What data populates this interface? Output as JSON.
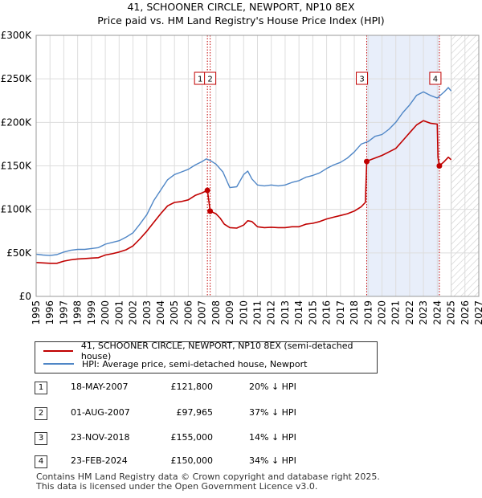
{
  "title": {
    "line1": "41, SCHOONER CIRCLE, NEWPORT, NP10 8EX",
    "line2": "Price paid vs. HM Land Registry's House Price Index (HPI)"
  },
  "colors": {
    "price": "#c00000",
    "hpi": "#4f86c6",
    "shade": "#e8eefa"
  },
  "chart_data": {
    "type": "line",
    "xlim": [
      1995,
      2027
    ],
    "ylim": [
      0,
      300000
    ],
    "y_ticks": [
      0,
      50000,
      100000,
      150000,
      200000,
      250000,
      300000
    ],
    "y_tick_labels": [
      "£0",
      "£50K",
      "£100K",
      "£150K",
      "£200K",
      "£250K",
      "£300K"
    ],
    "x_ticks": [
      1995,
      1996,
      1997,
      1998,
      1999,
      2000,
      2001,
      2002,
      2003,
      2004,
      2005,
      2006,
      2007,
      2008,
      2009,
      2010,
      2011,
      2012,
      2013,
      2014,
      2015,
      2016,
      2017,
      2018,
      2019,
      2020,
      2021,
      2022,
      2023,
      2024,
      2025,
      2026,
      2027
    ],
    "hatch_from": 2025.0,
    "shaded_ranges": [
      [
        2018.9,
        2024.15
      ]
    ],
    "series": [
      {
        "name": "41, SCHOONER CIRCLE, NEWPORT, NP10 8EX (semi-detached house)",
        "key": "price",
        "points": [
          [
            1995.0,
            39000
          ],
          [
            1995.5,
            38500
          ],
          [
            1996.0,
            38000
          ],
          [
            1996.5,
            38000
          ],
          [
            1997.0,
            40500
          ],
          [
            1997.5,
            42000
          ],
          [
            1998.0,
            43000
          ],
          [
            1998.5,
            43500
          ],
          [
            1999.0,
            44000
          ],
          [
            1999.5,
            44500
          ],
          [
            2000.0,
            47500
          ],
          [
            2000.5,
            49000
          ],
          [
            2001.0,
            51000
          ],
          [
            2001.5,
            53500
          ],
          [
            2002.0,
            58000
          ],
          [
            2002.5,
            66000
          ],
          [
            2003.0,
            75000
          ],
          [
            2003.5,
            85000
          ],
          [
            2004.0,
            95000
          ],
          [
            2004.5,
            104000
          ],
          [
            2005.0,
            108000
          ],
          [
            2005.5,
            109000
          ],
          [
            2006.0,
            111000
          ],
          [
            2006.5,
            116000
          ],
          [
            2007.0,
            119000
          ],
          [
            2007.38,
            121800
          ],
          [
            2007.5,
            108000
          ],
          [
            2007.58,
            97965
          ],
          [
            2008.0,
            95000
          ],
          [
            2008.3,
            90000
          ],
          [
            2008.6,
            83000
          ],
          [
            2009.0,
            79000
          ],
          [
            2009.5,
            78500
          ],
          [
            2010.0,
            82000
          ],
          [
            2010.3,
            87000
          ],
          [
            2010.6,
            86000
          ],
          [
            2011.0,
            80000
          ],
          [
            2011.5,
            79000
          ],
          [
            2012.0,
            79500
          ],
          [
            2012.5,
            79000
          ],
          [
            2013.0,
            79000
          ],
          [
            2013.5,
            80000
          ],
          [
            2014.0,
            80000
          ],
          [
            2014.5,
            83000
          ],
          [
            2015.0,
            84000
          ],
          [
            2015.5,
            86000
          ],
          [
            2016.0,
            89000
          ],
          [
            2016.5,
            91000
          ],
          [
            2017.0,
            93000
          ],
          [
            2017.5,
            95000
          ],
          [
            2018.0,
            98000
          ],
          [
            2018.5,
            103000
          ],
          [
            2018.8,
            108000
          ],
          [
            2018.9,
            155000
          ],
          [
            2019.0,
            156000
          ],
          [
            2019.5,
            159000
          ],
          [
            2020.0,
            162000
          ],
          [
            2020.5,
            166000
          ],
          [
            2021.0,
            170000
          ],
          [
            2021.5,
            179000
          ],
          [
            2022.0,
            188000
          ],
          [
            2022.5,
            197000
          ],
          [
            2023.0,
            202000
          ],
          [
            2023.5,
            199000
          ],
          [
            2024.0,
            198000
          ],
          [
            2024.05,
            160000
          ],
          [
            2024.15,
            150000
          ],
          [
            2024.5,
            155000
          ],
          [
            2024.8,
            160000
          ],
          [
            2025.0,
            157000
          ]
        ]
      },
      {
        "name": "HPI: Average price, semi-detached house, Newport",
        "key": "hpi",
        "points": [
          [
            1995.0,
            48500
          ],
          [
            1995.5,
            47500
          ],
          [
            1996.0,
            47000
          ],
          [
            1996.5,
            48000
          ],
          [
            1997.0,
            51000
          ],
          [
            1997.5,
            53000
          ],
          [
            1998.0,
            54000
          ],
          [
            1998.5,
            54000
          ],
          [
            1999.0,
            55000
          ],
          [
            1999.5,
            56000
          ],
          [
            2000.0,
            60000
          ],
          [
            2000.5,
            62000
          ],
          [
            2001.0,
            64000
          ],
          [
            2001.5,
            68000
          ],
          [
            2002.0,
            73000
          ],
          [
            2002.5,
            83000
          ],
          [
            2003.0,
            94000
          ],
          [
            2003.5,
            110000
          ],
          [
            2004.0,
            122000
          ],
          [
            2004.5,
            134000
          ],
          [
            2005.0,
            140000
          ],
          [
            2005.5,
            143000
          ],
          [
            2006.0,
            146000
          ],
          [
            2006.5,
            151000
          ],
          [
            2007.0,
            155000
          ],
          [
            2007.3,
            158000
          ],
          [
            2007.6,
            156000
          ],
          [
            2008.0,
            152000
          ],
          [
            2008.5,
            143000
          ],
          [
            2009.0,
            125000
          ],
          [
            2009.5,
            126000
          ],
          [
            2010.0,
            140000
          ],
          [
            2010.3,
            144000
          ],
          [
            2010.6,
            135000
          ],
          [
            2011.0,
            128000
          ],
          [
            2011.5,
            127000
          ],
          [
            2012.0,
            128000
          ],
          [
            2012.5,
            127000
          ],
          [
            2013.0,
            128000
          ],
          [
            2013.5,
            131000
          ],
          [
            2014.0,
            133000
          ],
          [
            2014.5,
            137000
          ],
          [
            2015.0,
            139000
          ],
          [
            2015.5,
            142000
          ],
          [
            2016.0,
            147000
          ],
          [
            2016.5,
            151000
          ],
          [
            2017.0,
            154000
          ],
          [
            2017.5,
            159000
          ],
          [
            2018.0,
            166000
          ],
          [
            2018.5,
            175000
          ],
          [
            2019.0,
            178000
          ],
          [
            2019.5,
            184000
          ],
          [
            2020.0,
            186000
          ],
          [
            2020.5,
            192000
          ],
          [
            2021.0,
            200000
          ],
          [
            2021.5,
            211000
          ],
          [
            2022.0,
            220000
          ],
          [
            2022.5,
            231000
          ],
          [
            2023.0,
            235000
          ],
          [
            2023.5,
            231000
          ],
          [
            2024.0,
            228000
          ],
          [
            2024.5,
            235000
          ],
          [
            2024.8,
            240000
          ],
          [
            2025.0,
            236000
          ]
        ]
      }
    ],
    "sales": [
      {
        "label": "1",
        "x": 2007.38,
        "y": 121800
      },
      {
        "label": "2",
        "x": 2007.58,
        "y": 97965
      },
      {
        "label": "3",
        "x": 2018.9,
        "y": 155000
      },
      {
        "label": "4",
        "x": 2024.15,
        "y": 150000
      }
    ]
  },
  "legend": {
    "price_label": "41, SCHOONER CIRCLE, NEWPORT, NP10 8EX (semi-detached house)",
    "hpi_label": "HPI: Average price, semi-detached house, Newport"
  },
  "transactions": [
    {
      "num": "1",
      "date": "18-MAY-2007",
      "price": "£121,800",
      "pct": "20% ↓ HPI"
    },
    {
      "num": "2",
      "date": "01-AUG-2007",
      "price": "£97,965",
      "pct": "37% ↓ HPI"
    },
    {
      "num": "3",
      "date": "23-NOV-2018",
      "price": "£155,000",
      "pct": "14% ↓ HPI"
    },
    {
      "num": "4",
      "date": "23-FEB-2024",
      "price": "£150,000",
      "pct": "34% ↓ HPI"
    }
  ],
  "footer": {
    "line1": "Contains HM Land Registry data © Crown copyright and database right 2025.",
    "line2": "This data is licensed under the Open Government Licence v3.0."
  }
}
